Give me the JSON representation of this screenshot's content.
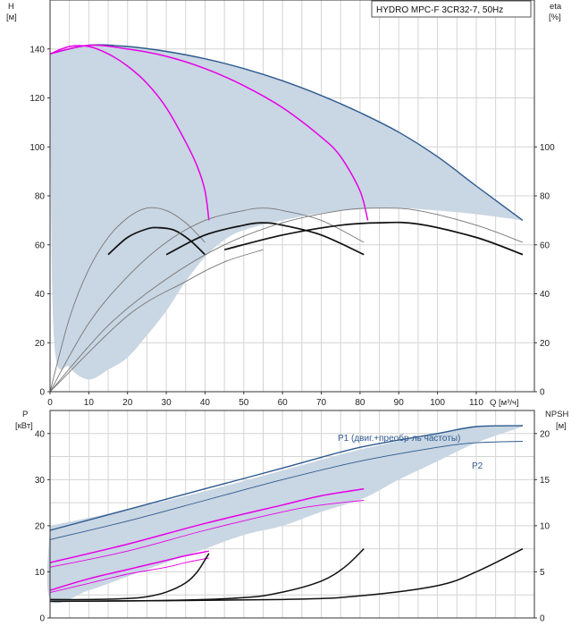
{
  "legend": "HYDRO MPC-F 3CR32-7, 50Hz",
  "colors": {
    "envelope": "#c9d6e3",
    "head": "#2d5a8f",
    "magenta": "#e600e6",
    "black": "#111111",
    "thin": "#777777"
  },
  "chart_data": [
    {
      "type": "line",
      "title": "",
      "ylabel_left": "H",
      "yunit_left": "[м]",
      "ylabel_right": "eta",
      "yunit_right": "[%]",
      "xlabel": "Q [м³/ч]",
      "xlim": [
        0,
        125
      ],
      "ylim": [
        0,
        160
      ],
      "xticks": [
        "0",
        "10",
        "20",
        "30",
        "40",
        "50",
        "60",
        "70",
        "80",
        "90",
        "100",
        "110"
      ],
      "yticks_left": [
        "0",
        "20",
        "40",
        "60",
        "80",
        "100",
        "120",
        "140"
      ],
      "yticks_right": [
        "0",
        "20",
        "40",
        "60",
        "80",
        "100"
      ],
      "grid": true,
      "legend_position": "top-right",
      "envelope": {
        "upper": [
          [
            0,
            138
          ],
          [
            10,
            141.5
          ],
          [
            20,
            141
          ],
          [
            30,
            139
          ],
          [
            40,
            136
          ],
          [
            50,
            132
          ],
          [
            60,
            127
          ],
          [
            70,
            121
          ],
          [
            80,
            114
          ],
          [
            90,
            106
          ],
          [
            100,
            96
          ],
          [
            110,
            84
          ],
          [
            122,
            70
          ]
        ],
        "lower": [
          [
            122,
            70
          ],
          [
            110,
            72.5
          ],
          [
            100,
            74
          ],
          [
            90,
            75
          ],
          [
            80,
            74.5
          ],
          [
            70,
            73
          ],
          [
            60,
            70
          ],
          [
            50,
            66
          ],
          [
            45,
            62
          ],
          [
            40,
            55
          ],
          [
            35,
            45
          ],
          [
            30,
            33
          ],
          [
            25,
            23
          ],
          [
            20,
            14
          ],
          [
            15,
            9
          ],
          [
            10,
            5
          ],
          [
            5,
            10
          ],
          [
            1,
            22
          ],
          [
            0,
            138
          ]
        ]
      },
      "series": [
        {
          "role": "head-full",
          "values": [
            [
              0,
              138
            ],
            [
              10,
              141.5
            ],
            [
              20,
              141
            ],
            [
              30,
              139
            ],
            [
              40,
              136
            ],
            [
              50,
              132
            ],
            [
              60,
              127
            ],
            [
              70,
              121
            ],
            [
              80,
              114
            ],
            [
              90,
              106
            ],
            [
              100,
              96
            ],
            [
              110,
              84
            ],
            [
              122,
              70
            ]
          ]
        },
        {
          "role": "head-1pump",
          "values": [
            [
              0,
              138
            ],
            [
              5,
              141
            ],
            [
              10,
              141
            ],
            [
              15,
              138
            ],
            [
              20,
              133
            ],
            [
              25,
              126
            ],
            [
              30,
              116
            ],
            [
              35,
              102
            ],
            [
              38,
              92
            ],
            [
              40,
              82
            ],
            [
              41,
              70
            ]
          ]
        },
        {
          "role": "head-2pumps",
          "values": [
            [
              0,
              138
            ],
            [
              10,
              141.5
            ],
            [
              20,
              140
            ],
            [
              30,
              137
            ],
            [
              40,
              132
            ],
            [
              50,
              125
            ],
            [
              60,
              116
            ],
            [
              70,
              104
            ],
            [
              75,
              96
            ],
            [
              80,
              82
            ],
            [
              82,
              70
            ]
          ]
        },
        {
          "role": "eta-1-thin",
          "values": [
            [
              0,
              0
            ],
            [
              5,
              30
            ],
            [
              10,
              50
            ],
            [
              15,
              63
            ],
            [
              20,
              71
            ],
            [
              25,
              75
            ],
            [
              30,
              74
            ],
            [
              35,
              69
            ],
            [
              40,
              61
            ]
          ]
        },
        {
          "role": "eta-1-bold",
          "values": [
            [
              15,
              56
            ],
            [
              20,
              63
            ],
            [
              25,
              66.5
            ],
            [
              28,
              67
            ],
            [
              32,
              66
            ],
            [
              36,
              62
            ],
            [
              40,
              56
            ]
          ]
        },
        {
          "role": "eta-2-thin",
          "values": [
            [
              0,
              0
            ],
            [
              10,
              28
            ],
            [
              20,
              47
            ],
            [
              30,
              61
            ],
            [
              40,
              70
            ],
            [
              50,
              74
            ],
            [
              55,
              75
            ],
            [
              60,
              74
            ],
            [
              70,
              70
            ],
            [
              81,
              61
            ]
          ]
        },
        {
          "role": "eta-2-bold",
          "values": [
            [
              30,
              56
            ],
            [
              40,
              64
            ],
            [
              50,
              68
            ],
            [
              55,
              69
            ],
            [
              60,
              68
            ],
            [
              70,
              64
            ],
            [
              81,
              56
            ]
          ]
        },
        {
          "role": "eta-3-thin",
          "values": [
            [
              0,
              0
            ],
            [
              15,
              27
            ],
            [
              30,
              46
            ],
            [
              45,
              60
            ],
            [
              60,
              69
            ],
            [
              75,
              74
            ],
            [
              85,
              75
            ],
            [
              95,
              74
            ],
            [
              110,
              68
            ],
            [
              122,
              61
            ]
          ]
        },
        {
          "role": "eta-3-bold",
          "values": [
            [
              45,
              58
            ],
            [
              60,
              64
            ],
            [
              75,
              68
            ],
            [
              85,
              69
            ],
            [
              95,
              68.5
            ],
            [
              110,
              63
            ],
            [
              122,
              56
            ]
          ]
        },
        {
          "role": "eta-4-thin",
          "values": [
            [
              0,
              0
            ],
            [
              20,
              31
            ],
            [
              35,
              45
            ],
            [
              45,
              53
            ],
            [
              55,
              58
            ]
          ]
        }
      ]
    },
    {
      "type": "line",
      "title": "",
      "ylabel_left": "P",
      "yunit_left": "[кВт]",
      "ylabel_right": "NPSH",
      "yunit_right": "[м]",
      "xlabel": "",
      "xlim": [
        0,
        125
      ],
      "ylim": [
        0,
        45
      ],
      "ylim_right": [
        0,
        22.5
      ],
      "yticks_left": [
        "0",
        "10",
        "20",
        "30",
        "40"
      ],
      "yticks_right": [
        "0",
        "5",
        "10",
        "15",
        "20"
      ],
      "grid": true,
      "envelope": {
        "upper": [
          [
            0,
            20
          ],
          [
            20,
            23.5
          ],
          [
            40,
            27.5
          ],
          [
            60,
            32
          ],
          [
            80,
            36.5
          ],
          [
            100,
            40
          ],
          [
            110,
            41.5
          ],
          [
            122,
            41.5
          ]
        ],
        "lower": [
          [
            122,
            41.5
          ],
          [
            110,
            38
          ],
          [
            100,
            34
          ],
          [
            90,
            30
          ],
          [
            81,
            26
          ],
          [
            70,
            23
          ],
          [
            60,
            20
          ],
          [
            50,
            18
          ],
          [
            40,
            15
          ],
          [
            30,
            12
          ],
          [
            20,
            9
          ],
          [
            10,
            6
          ],
          [
            0,
            4
          ],
          [
            0,
            20
          ]
        ]
      },
      "series": [
        {
          "name": "P1 (двиг.+преобр-ль частоты)",
          "role": "p1-full",
          "values": [
            [
              0,
              19
            ],
            [
              20,
              23.5
            ],
            [
              40,
              28
            ],
            [
              60,
              32.5
            ],
            [
              80,
              37
            ],
            [
              100,
              40
            ],
            [
              110,
              41.5
            ],
            [
              122,
              41.7
            ]
          ]
        },
        {
          "name": "P2",
          "role": "p2-full",
          "values": [
            [
              0,
              17
            ],
            [
              20,
              21
            ],
            [
              40,
              25.5
            ],
            [
              60,
              30
            ],
            [
              80,
              34
            ],
            [
              100,
              37
            ],
            [
              110,
              38
            ],
            [
              122,
              38.3
            ]
          ]
        },
        {
          "role": "p1-2pumps",
          "values": [
            [
              0,
              12
            ],
            [
              20,
              16
            ],
            [
              40,
              20.5
            ],
            [
              60,
              24.5
            ],
            [
              70,
              26.5
            ],
            [
              81,
              28
            ]
          ]
        },
        {
          "role": "p2-2pumps",
          "values": [
            [
              0,
              11
            ],
            [
              20,
              14.5
            ],
            [
              40,
              19
            ],
            [
              60,
              23
            ],
            [
              70,
              24.5
            ],
            [
              81,
              25.5
            ]
          ]
        },
        {
          "role": "p1-1pump",
          "values": [
            [
              0,
              6
            ],
            [
              10,
              8.5
            ],
            [
              20,
              10.5
            ],
            [
              30,
              12.5
            ],
            [
              35,
              13.5
            ],
            [
              41,
              14.5
            ]
          ]
        },
        {
          "role": "p2-1pump",
          "values": [
            [
              0,
              5.5
            ],
            [
              10,
              7.5
            ],
            [
              20,
              9.5
            ],
            [
              30,
              11
            ],
            [
              35,
              12
            ],
            [
              41,
              13
            ]
          ]
        },
        {
          "role": "npsh-1",
          "axis": "right",
          "values": [
            [
              0,
              2
            ],
            [
              10,
              2
            ],
            [
              20,
              2.1
            ],
            [
              25,
              2.3
            ],
            [
              30,
              2.8
            ],
            [
              35,
              3.8
            ],
            [
              38,
              5
            ],
            [
              41,
              7
            ]
          ]
        },
        {
          "role": "npsh-2",
          "axis": "right",
          "values": [
            [
              0,
              1.8
            ],
            [
              30,
              1.9
            ],
            [
              50,
              2.2
            ],
            [
              60,
              2.8
            ],
            [
              70,
              4
            ],
            [
              76,
              5.5
            ],
            [
              81,
              7.5
            ]
          ]
        },
        {
          "role": "npsh-3",
          "axis": "right",
          "values": [
            [
              0,
              1.8
            ],
            [
              60,
              2
            ],
            [
              80,
              2.4
            ],
            [
              100,
              3.5
            ],
            [
              110,
              5
            ],
            [
              122,
              7.5
            ]
          ]
        }
      ]
    }
  ]
}
